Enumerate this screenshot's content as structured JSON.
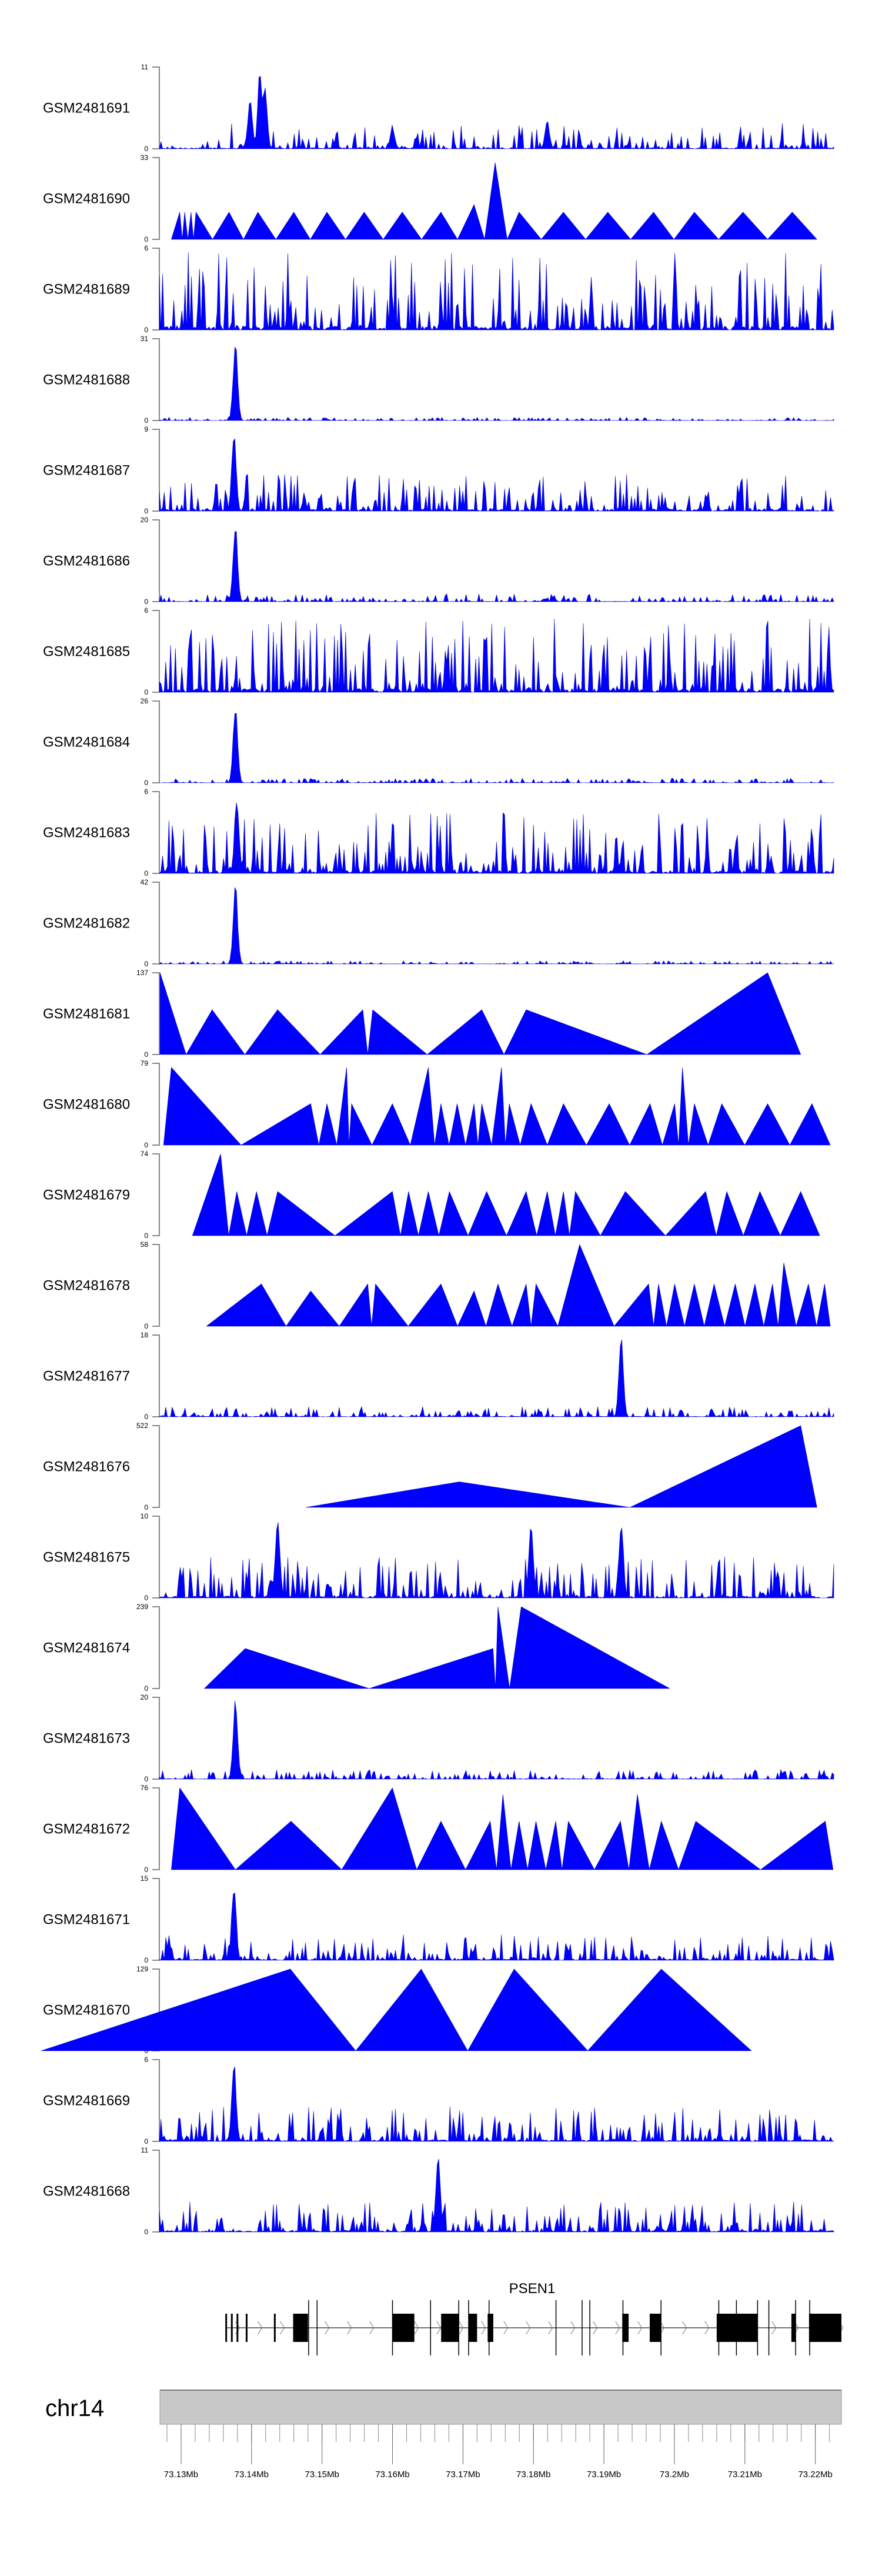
{
  "chart_data": {
    "type": "area",
    "title": "",
    "xlabel": "",
    "chromosome": "chr14",
    "xlim_mb": [
      73.1269,
      73.2227
    ],
    "axis_ticks": [
      "73.13Mb",
      "73.14Mb",
      "73.15Mb",
      "73.16Mb",
      "73.17Mb",
      "73.18Mb",
      "73.19Mb",
      "73.2Mb",
      "73.21Mb",
      "73.22Mb"
    ],
    "axis_tick_values_mb": [
      73.13,
      73.14,
      73.15,
      73.16,
      73.17,
      73.18,
      73.19,
      73.2,
      73.21,
      73.22
    ],
    "color": "#0000ff",
    "gene": {
      "name": "PSEN1",
      "strand": "+",
      "start_mb": 73.1364,
      "end_mb": 73.2237,
      "thin_exons_mb": [
        73.1364,
        73.1372,
        73.138,
        73.1393,
        73.1433
      ],
      "exons_mb": [
        [
          73.1459,
          73.148
        ],
        [
          73.16,
          73.1631
        ],
        [
          73.1669,
          73.1694
        ],
        [
          73.1708,
          73.172
        ],
        [
          73.1735,
          73.1743
        ],
        [
          73.1926,
          73.1935
        ],
        [
          73.1965,
          73.1981
        ],
        [
          73.206,
          73.2118
        ],
        [
          73.2166,
          73.2172
        ],
        [
          73.2191,
          73.2237
        ]
      ],
      "boundary_marks_mb": [
        73.1481,
        73.1493,
        73.16,
        73.1654,
        73.1694,
        73.1708,
        73.1737,
        73.1832,
        73.1869,
        73.188,
        73.1927,
        73.1981,
        73.2063,
        73.2088,
        73.2118,
        73.2134,
        73.2172,
        73.2192
      ]
    },
    "tracks": [
      {
        "name": "GSM2481691",
        "ymax": 11,
        "kind": "dense",
        "noise": 2.2,
        "peaks": [
          [
            73.1398,
            7
          ],
          [
            73.1412,
            11
          ],
          [
            73.1419,
            9
          ],
          [
            73.16,
            3
          ],
          [
            73.182,
            4
          ]
        ]
      },
      {
        "name": "GSM2481690",
        "ymax": 33,
        "kind": "triangles",
        "start": 73.1286,
        "end": 73.2203,
        "peaks": [
          [
            73.1298,
            11
          ],
          [
            73.1305,
            11
          ],
          [
            73.1314,
            11
          ],
          [
            73.1321,
            11
          ],
          [
            73.1368,
            11
          ],
          [
            73.1409,
            11
          ],
          [
            73.146,
            11
          ],
          [
            73.1507,
            11
          ],
          [
            73.156,
            11
          ],
          [
            73.1614,
            11
          ],
          [
            73.1669,
            11
          ],
          [
            73.1716,
            14
          ],
          [
            73.1746,
            31
          ],
          [
            73.178,
            11
          ],
          [
            73.1843,
            11
          ],
          [
            73.1906,
            11
          ],
          [
            73.1971,
            11
          ],
          [
            73.2029,
            11
          ],
          [
            73.2098,
            11
          ],
          [
            73.2168,
            11
          ]
        ]
      },
      {
        "name": "GSM2481689",
        "ymax": 6,
        "kind": "dense",
        "noise": 3.6,
        "peaks": []
      },
      {
        "name": "GSM2481688",
        "ymax": 31,
        "kind": "dense",
        "noise": 0.8,
        "peaks": [
          [
            73.1377,
            31
          ]
        ]
      },
      {
        "name": "GSM2481687",
        "ymax": 9,
        "kind": "dense",
        "noise": 2.6,
        "peaks": [
          [
            73.1375,
            9
          ]
        ]
      },
      {
        "name": "GSM2481686",
        "ymax": 20,
        "kind": "dense",
        "noise": 1.2,
        "peaks": [
          [
            73.1377,
            20
          ]
        ]
      },
      {
        "name": "GSM2481685",
        "ymax": 6,
        "kind": "dense",
        "noise": 3.4,
        "peaks": []
      },
      {
        "name": "GSM2481684",
        "ymax": 26,
        "kind": "dense",
        "noise": 0.9,
        "peaks": [
          [
            73.1377,
            26
          ]
        ]
      },
      {
        "name": "GSM2481683",
        "ymax": 6,
        "kind": "dense",
        "noise": 2.8,
        "peaks": [
          [
            73.1379,
            6
          ]
        ]
      },
      {
        "name": "GSM2481682",
        "ymax": 42,
        "kind": "dense",
        "noise": 1.0,
        "peaks": [
          [
            73.1377,
            42
          ]
        ]
      },
      {
        "name": "GSM2481681",
        "ymax": 137,
        "kind": "triangles",
        "start": 73.127,
        "end": 73.218,
        "peaks": [
          [
            73.127,
            137
          ],
          [
            73.1344,
            75
          ],
          [
            73.1437,
            75
          ],
          [
            73.1558,
            75
          ],
          [
            73.1572,
            75
          ],
          [
            73.1727,
            75
          ],
          [
            73.179,
            75
          ],
          [
            73.2133,
            137
          ]
        ]
      },
      {
        "name": "GSM2481680",
        "ymax": 79,
        "kind": "triangles",
        "start": 73.1275,
        "end": 73.2222,
        "peaks": [
          [
            73.1286,
            75
          ],
          [
            73.1484,
            40
          ],
          [
            73.1507,
            40
          ],
          [
            73.1535,
            75
          ],
          [
            73.1542,
            40
          ],
          [
            73.16,
            40
          ],
          [
            73.1651,
            75
          ],
          [
            73.1669,
            40
          ],
          [
            73.1692,
            40
          ],
          [
            73.1716,
            40
          ],
          [
            73.1727,
            40
          ],
          [
            73.1755,
            75
          ],
          [
            73.1766,
            40
          ],
          [
            73.1797,
            40
          ],
          [
            73.1843,
            40
          ],
          [
            73.1908,
            40
          ],
          [
            73.1966,
            40
          ],
          [
            73.2001,
            40
          ],
          [
            73.2012,
            75
          ],
          [
            73.2029,
            40
          ],
          [
            73.2068,
            40
          ],
          [
            73.2133,
            40
          ],
          [
            73.2196,
            40
          ]
        ]
      },
      {
        "name": "GSM2481679",
        "ymax": 74,
        "kind": "triangles",
        "start": 73.1316,
        "end": 73.2207,
        "peaks": [
          [
            73.1356,
            74
          ],
          [
            73.1379,
            40
          ],
          [
            73.1407,
            40
          ],
          [
            73.1437,
            40
          ],
          [
            73.16,
            40
          ],
          [
            73.1623,
            40
          ],
          [
            73.1651,
            40
          ],
          [
            73.1681,
            40
          ],
          [
            73.1734,
            40
          ],
          [
            73.179,
            40
          ],
          [
            73.182,
            40
          ],
          [
            73.1843,
            40
          ],
          [
            73.186,
            40
          ],
          [
            73.1931,
            40
          ],
          [
            73.2045,
            40
          ],
          [
            73.2075,
            40
          ],
          [
            73.2122,
            40
          ],
          [
            73.218,
            40
          ]
        ]
      },
      {
        "name": "GSM2481678",
        "ymax": 58,
        "kind": "triangles",
        "start": 73.1336,
        "end": 73.2222,
        "peaks": [
          [
            73.1414,
            30
          ],
          [
            73.1484,
            25
          ],
          [
            73.1565,
            30
          ],
          [
            73.1576,
            30
          ],
          [
            73.1669,
            30
          ],
          [
            73.1716,
            25
          ],
          [
            73.175,
            30
          ],
          [
            73.179,
            30
          ],
          [
            73.1804,
            30
          ],
          [
            73.1866,
            58
          ],
          [
            73.1964,
            30
          ],
          [
            73.1978,
            30
          ],
          [
            73.2001,
            30
          ],
          [
            73.2029,
            30
          ],
          [
            73.2057,
            30
          ],
          [
            73.2087,
            30
          ],
          [
            73.2115,
            30
          ],
          [
            73.214,
            30
          ],
          [
            73.2156,
            45
          ],
          [
            73.2191,
            30
          ],
          [
            73.2214,
            30
          ]
        ]
      },
      {
        "name": "GSM2481677",
        "ymax": 18,
        "kind": "dense",
        "noise": 1.4,
        "peaks": [
          [
            73.1925,
            18
          ]
        ]
      },
      {
        "name": "GSM2481676",
        "ymax": 522,
        "kind": "triangles",
        "start": 73.1477,
        "end": 73.2203,
        "peaks": [
          [
            73.1695,
            163
          ],
          [
            73.218,
            522
          ]
        ]
      },
      {
        "name": "GSM2481675",
        "ymax": 10,
        "kind": "dense",
        "noise": 3.2,
        "peaks": [
          [
            73.1437,
            10
          ],
          [
            73.1797,
            10
          ],
          [
            73.1925,
            10
          ]
        ]
      },
      {
        "name": "GSM2481674",
        "ymax": 239,
        "kind": "triangles",
        "start": 73.1333,
        "end": 73.1994,
        "peaks": [
          [
            73.1391,
            117
          ],
          [
            73.1743,
            117
          ],
          [
            73.175,
            239
          ],
          [
            73.1783,
            239
          ]
        ]
      },
      {
        "name": "GSM2481673",
        "ymax": 20,
        "kind": "dense",
        "noise": 1.5,
        "peaks": [
          [
            73.1377,
            20
          ]
        ]
      },
      {
        "name": "GSM2481672",
        "ymax": 76,
        "kind": "triangles",
        "start": 73.1286,
        "end": 73.2226,
        "peaks": [
          [
            73.1298,
            76
          ],
          [
            73.1456,
            45
          ],
          [
            73.16,
            76
          ],
          [
            73.1669,
            45
          ],
          [
            73.1739,
            45
          ],
          [
            73.1757,
            70
          ],
          [
            73.178,
            45
          ],
          [
            73.1804,
            45
          ],
          [
            73.1832,
            45
          ],
          [
            73.185,
            45
          ],
          [
            73.1924,
            45
          ],
          [
            73.1948,
            70
          ],
          [
            73.1982,
            45
          ],
          [
            73.2031,
            45
          ],
          [
            73.2215,
            45
          ]
        ]
      },
      {
        "name": "GSM2481671",
        "ymax": 15,
        "kind": "dense",
        "noise": 3.0,
        "peaks": [
          [
            73.1375,
            15
          ]
        ]
      },
      {
        "name": "GSM2481670",
        "ymax": 129,
        "kind": "triangles",
        "start": 73.1101,
        "end": 73.211,
        "peaks": [
          [
            73.1455,
            129
          ],
          [
            73.1641,
            129
          ],
          [
            73.1773,
            129
          ],
          [
            73.1982,
            129
          ]
        ]
      },
      {
        "name": "GSM2481669",
        "ymax": 6,
        "kind": "dense",
        "noise": 1.6,
        "peaks": [
          [
            73.1375,
            6
          ]
        ]
      },
      {
        "name": "GSM2481668",
        "ymax": 11,
        "kind": "dense",
        "noise": 2.6,
        "peaks": [
          [
            73.1665,
            11
          ]
        ]
      }
    ]
  }
}
